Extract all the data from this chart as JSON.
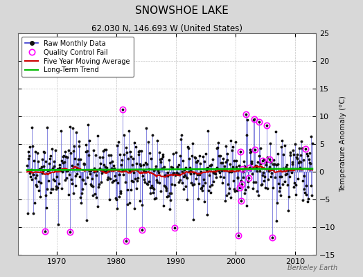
{
  "title": "SNOWSHOE LAKE",
  "subtitle": "62.030 N, 146.693 W (United States)",
  "ylabel": "Temperature Anomaly (°C)",
  "watermark": "Berkeley Earth",
  "ylim": [
    -15,
    25
  ],
  "yticks": [
    -15,
    -10,
    -5,
    0,
    5,
    10,
    15,
    20,
    25
  ],
  "xlim": [
    1963.5,
    2013.5
  ],
  "xticks": [
    1970,
    1980,
    1990,
    2000,
    2010
  ],
  "fig_bg_color": "#d8d8d8",
  "plot_bg_color": "#ffffff",
  "raw_line_color": "#3333cc",
  "raw_dot_color": "#111111",
  "ma_color": "#cc0000",
  "trend_color": "#00bb00",
  "qc_color": "#ff00ff",
  "title_fontsize": 11,
  "subtitle_fontsize": 8.5,
  "ylabel_fontsize": 7.5,
  "tick_fontsize": 8,
  "legend_fontsize": 7,
  "watermark_fontsize": 7,
  "seed": 17
}
